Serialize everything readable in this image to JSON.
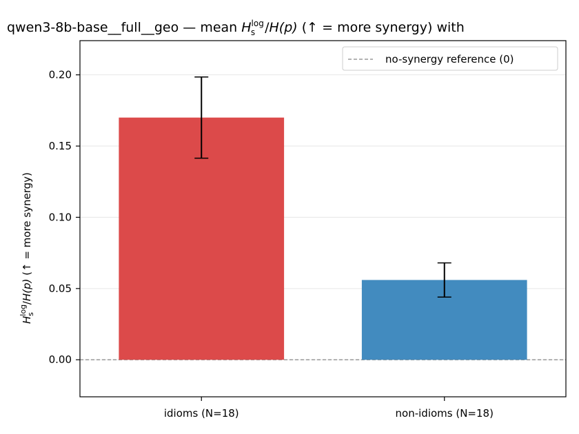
{
  "chart_data": {
    "type": "bar",
    "title": {
      "prefix": "qwen3-8b-base__full__geo — mean ",
      "h": "H",
      "sup": "log",
      "sub": "s",
      "mid": "/",
      "hp": "H(p)",
      "suffix": "  (↑ = more synergy) with"
    },
    "ylabel": {
      "h": "H",
      "sup": "log",
      "sub": "s",
      "mid": "/",
      "hp": "H(p)",
      "suffix": "  (↑ = more synergy)"
    },
    "categories": [
      "idioms (N=18)",
      "non-idioms (N=18)"
    ],
    "values": [
      0.17,
      0.056
    ],
    "errors": [
      0.0285,
      0.012
    ],
    "colors": [
      "#dc4a4a",
      "#428bbf"
    ],
    "ylim": [
      -0.026,
      0.224
    ],
    "yticks": [
      0.0,
      0.05,
      0.1,
      0.15,
      0.2
    ],
    "ytick_labels": [
      "0.00",
      "0.05",
      "0.10",
      "0.15",
      "0.20"
    ],
    "grid": true,
    "reference_line": {
      "y": 0,
      "label": "no-synergy reference (0)",
      "color": "#999999"
    },
    "legend": {
      "position": "top-right",
      "entries": [
        "no-synergy reference (0)"
      ]
    }
  }
}
